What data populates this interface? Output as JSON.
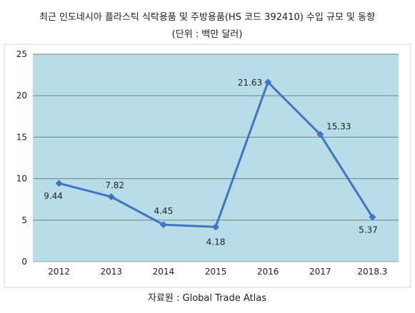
{
  "chart_data": {
    "type": "line",
    "title": "최근 인도네시아 플라스틱 식탁용품 및 주방용품(HS 코드 392410) 수입 규모 및 동향",
    "subtitle": "(단위 : 백만 달러)",
    "source": "자료원 : Global Trade Atlas",
    "xlabel": "",
    "ylabel": "",
    "categories": [
      "2012",
      "2013",
      "2014",
      "2015",
      "2016",
      "2017",
      "2018.3"
    ],
    "series": [
      {
        "values": [
          9.44,
          7.82,
          4.45,
          4.18,
          21.63,
          15.33,
          5.37
        ],
        "data_labels": [
          "9.44",
          "7.82",
          "4.45",
          "4.18",
          "21.63",
          "15.33",
          "5.37"
        ]
      }
    ],
    "ylim": [
      0,
      25
    ],
    "yticks": [
      "0",
      "5",
      "10",
      "15",
      "20",
      "25"
    ],
    "grid": true,
    "legend": "none",
    "colors": {
      "plot_background": "#b7dde8",
      "line": "#4472c4",
      "marker": "#4472c4",
      "grid": "#7f7f7f",
      "frame": "#a6a6a6"
    }
  }
}
